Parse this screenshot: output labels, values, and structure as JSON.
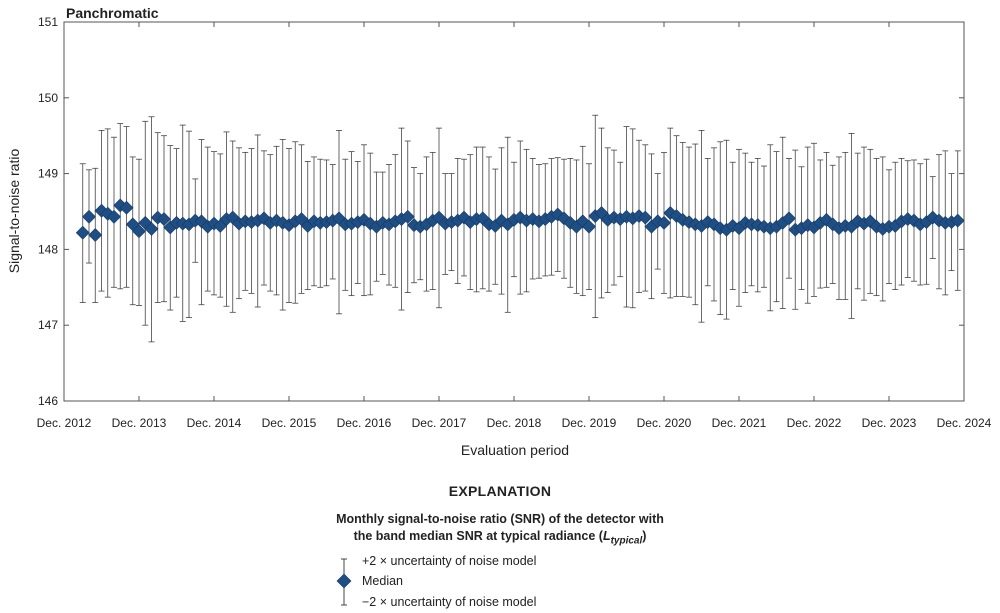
{
  "chart_data": {
    "type": "scatter",
    "title": "Panchromatic",
    "xlabel": "Evaluation period",
    "ylabel": "Signal-to-noise ratio",
    "ylim": [
      146,
      151
    ],
    "yticks": [
      146,
      147,
      148,
      149,
      150,
      151
    ],
    "xticks": [
      "Dec. 2012",
      "Dec. 2013",
      "Dec. 2014",
      "Dec. 2015",
      "Dec. 2016",
      "Dec. 2017",
      "Dec. 2018",
      "Dec. 2019",
      "Dec. 2020",
      "Dec. 2021",
      "Dec. 2022",
      "Dec. 2023",
      "Dec. 2024"
    ],
    "xlim": [
      "2012-12",
      "2024-12"
    ],
    "x_start": "2013-03",
    "grid": false,
    "marker_color": "#1f4e85",
    "series": [
      {
        "name": "Median",
        "median": [
          148.22,
          148.43,
          148.19,
          148.51,
          148.47,
          148.43,
          148.58,
          148.55,
          148.33,
          148.24,
          148.35,
          148.27,
          148.42,
          148.4,
          148.29,
          148.35,
          148.34,
          148.33,
          148.38,
          148.37,
          148.3,
          148.34,
          148.31,
          148.4,
          148.42,
          148.34,
          148.37,
          148.36,
          148.38,
          148.41,
          148.35,
          148.38,
          148.35,
          148.32,
          148.37,
          148.4,
          148.31,
          148.37,
          148.35,
          148.36,
          148.38,
          148.41,
          148.33,
          148.34,
          148.36,
          148.39,
          148.34,
          148.3,
          148.35,
          148.33,
          148.37,
          148.4,
          148.43,
          148.32,
          148.3,
          148.33,
          148.38,
          148.42,
          148.34,
          148.36,
          148.38,
          148.42,
          148.36,
          148.4,
          148.41,
          148.33,
          148.31,
          148.38,
          148.33,
          148.39,
          148.42,
          148.38,
          148.4,
          148.37,
          148.4,
          148.43,
          148.46,
          148.41,
          148.35,
          148.3,
          148.37,
          148.3,
          148.44,
          148.48,
          148.39,
          148.42,
          148.4,
          148.43,
          148.41,
          148.44,
          148.42,
          148.3,
          148.37,
          148.35,
          148.48,
          148.44,
          148.39,
          148.36,
          148.33,
          148.31,
          148.36,
          148.33,
          148.28,
          148.26,
          148.31,
          148.28,
          148.35,
          148.33,
          148.32,
          148.3,
          148.28,
          148.3,
          148.35,
          148.41,
          148.26,
          148.28,
          148.32,
          148.29,
          148.35,
          148.39,
          148.33,
          148.28,
          148.31,
          148.3,
          148.37,
          148.34,
          148.37,
          148.3,
          148.27,
          148.3,
          148.31,
          148.37,
          148.4,
          148.38,
          148.33,
          148.36,
          148.42,
          148.38,
          148.35,
          148.36,
          148.38
        ],
        "upper": [
          149.13,
          149.05,
          149.07,
          149.57,
          149.59,
          149.48,
          149.66,
          149.62,
          149.22,
          149.19,
          149.69,
          149.75,
          149.54,
          149.5,
          149.37,
          149.33,
          149.64,
          149.56,
          148.93,
          149.45,
          149.35,
          149.29,
          149.26,
          149.55,
          149.43,
          149.34,
          149.28,
          149.33,
          149.51,
          149.3,
          149.25,
          149.36,
          149.45,
          149.33,
          149.42,
          149.38,
          149.16,
          149.22,
          149.19,
          149.18,
          149.12,
          149.57,
          149.19,
          149.29,
          149.16,
          149.38,
          149.27,
          149.02,
          149.02,
          149.12,
          149.25,
          149.6,
          149.43,
          149.08,
          149.0,
          149.22,
          149.28,
          149.6,
          149.0,
          149.0,
          149.2,
          149.19,
          149.25,
          149.35,
          149.35,
          149.22,
          149.06,
          149.34,
          149.48,
          149.15,
          149.43,
          149.32,
          149.2,
          149.12,
          149.13,
          149.2,
          149.21,
          149.19,
          149.2,
          149.18,
          149.36,
          149.13,
          149.77,
          149.6,
          149.34,
          149.31,
          149.15,
          149.62,
          149.59,
          149.44,
          149.38,
          149.26,
          149.0,
          149.28,
          149.6,
          149.5,
          149.41,
          149.35,
          149.39,
          149.57,
          149.2,
          149.34,
          149.42,
          149.44,
          149.15,
          149.32,
          149.27,
          149.15,
          149.2,
          149.1,
          149.38,
          149.29,
          149.48,
          149.2,
          149.31,
          149.09,
          149.35,
          149.4,
          149.18,
          149.28,
          149.11,
          149.22,
          149.28,
          149.53,
          149.27,
          149.35,
          149.32,
          149.2,
          149.22,
          149.05,
          149.15,
          149.2,
          149.17,
          149.18,
          149.13,
          149.19,
          148.96,
          149.25,
          149.3,
          149.0,
          149.3
        ],
        "lower": [
          147.3,
          147.82,
          147.3,
          147.45,
          147.37,
          147.5,
          147.48,
          147.5,
          147.27,
          147.26,
          147.0,
          146.78,
          147.3,
          147.31,
          147.2,
          147.37,
          147.05,
          147.1,
          147.83,
          147.27,
          147.45,
          147.4,
          147.37,
          147.25,
          147.17,
          147.35,
          147.46,
          147.42,
          147.24,
          147.53,
          147.45,
          147.4,
          147.2,
          147.3,
          147.29,
          147.42,
          147.47,
          147.52,
          147.5,
          147.52,
          147.61,
          147.15,
          147.46,
          147.39,
          147.55,
          147.39,
          147.4,
          147.58,
          147.67,
          147.53,
          147.5,
          147.2,
          147.43,
          147.56,
          147.6,
          147.45,
          147.47,
          147.23,
          147.67,
          147.72,
          147.55,
          147.65,
          147.47,
          147.44,
          147.48,
          147.45,
          147.54,
          147.41,
          147.17,
          147.64,
          147.41,
          147.44,
          147.61,
          147.62,
          147.65,
          147.66,
          147.71,
          147.62,
          147.5,
          147.42,
          147.39,
          147.47,
          147.1,
          147.36,
          147.43,
          147.53,
          147.64,
          147.24,
          147.23,
          147.43,
          147.45,
          147.35,
          147.74,
          147.42,
          147.36,
          147.38,
          147.38,
          147.37,
          147.27,
          147.04,
          147.52,
          147.32,
          147.14,
          147.08,
          147.47,
          147.25,
          147.43,
          147.52,
          147.44,
          147.5,
          147.19,
          147.31,
          147.22,
          147.62,
          147.21,
          147.47,
          147.29,
          147.38,
          147.49,
          147.5,
          147.55,
          147.34,
          147.34,
          147.09,
          147.48,
          147.33,
          147.42,
          147.39,
          147.32,
          147.55,
          147.47,
          147.53,
          147.63,
          147.58,
          147.53,
          147.54,
          147.88,
          147.48,
          147.4,
          147.72,
          147.46
        ]
      }
    ]
  },
  "legend": {
    "heading": "EXPLANATION",
    "description_line1": "Monthly signal-to-noise ratio (SNR) of the detector with",
    "description_line2": "the band median SNR at typical radiance (",
    "description_sub": "L",
    "description_sub_text": "typical",
    "description_end": ")",
    "upper_label": "+2 × uncertainty of noise model",
    "median_label": "Median",
    "lower_label": "−2 × uncertainty of noise model"
  }
}
